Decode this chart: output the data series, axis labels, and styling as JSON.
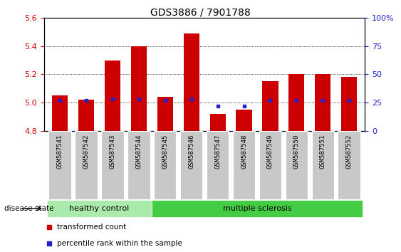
{
  "title": "GDS3886 / 7901788",
  "samples": [
    "GSM587541",
    "GSM587542",
    "GSM587543",
    "GSM587544",
    "GSM587545",
    "GSM587546",
    "GSM587547",
    "GSM587548",
    "GSM587549",
    "GSM587550",
    "GSM587551",
    "GSM587552"
  ],
  "transformed_counts": [
    5.05,
    5.02,
    5.3,
    5.4,
    5.04,
    5.49,
    4.92,
    4.95,
    5.15,
    5.2,
    5.2,
    5.18
  ],
  "percentile_ranks": [
    27,
    27,
    28,
    28,
    27,
    28,
    22,
    22,
    27,
    27,
    27,
    27
  ],
  "ylim_left": [
    4.8,
    5.6
  ],
  "ylim_right": [
    0,
    100
  ],
  "yticks_left": [
    4.8,
    5.0,
    5.2,
    5.4,
    5.6
  ],
  "yticks_right": [
    0,
    25,
    50,
    75,
    100
  ],
  "ytick_labels_right": [
    "0",
    "25",
    "50",
    "75",
    "100%"
  ],
  "bar_color": "#cc0000",
  "blue_color": "#2222cc",
  "bar_width": 0.6,
  "baseline": 4.8,
  "disease_groups": [
    {
      "label": "healthy control",
      "color": "#aaeaaa",
      "start": 0,
      "end": 4
    },
    {
      "label": "multiple sclerosis",
      "color": "#44cc44",
      "start": 4,
      "end": 12
    }
  ],
  "legend_items": [
    {
      "label": "transformed count",
      "color": "#cc0000"
    },
    {
      "label": "percentile rank within the sample",
      "color": "#2222cc"
    }
  ],
  "disease_state_label": "disease state",
  "background_color": "#ffffff",
  "tick_label_color_left": "#cc0000",
  "tick_label_color_right": "#2222cc",
  "xticklabel_bg": "#c8c8c8",
  "dotted_lines": [
    5.0,
    5.2,
    5.4
  ]
}
